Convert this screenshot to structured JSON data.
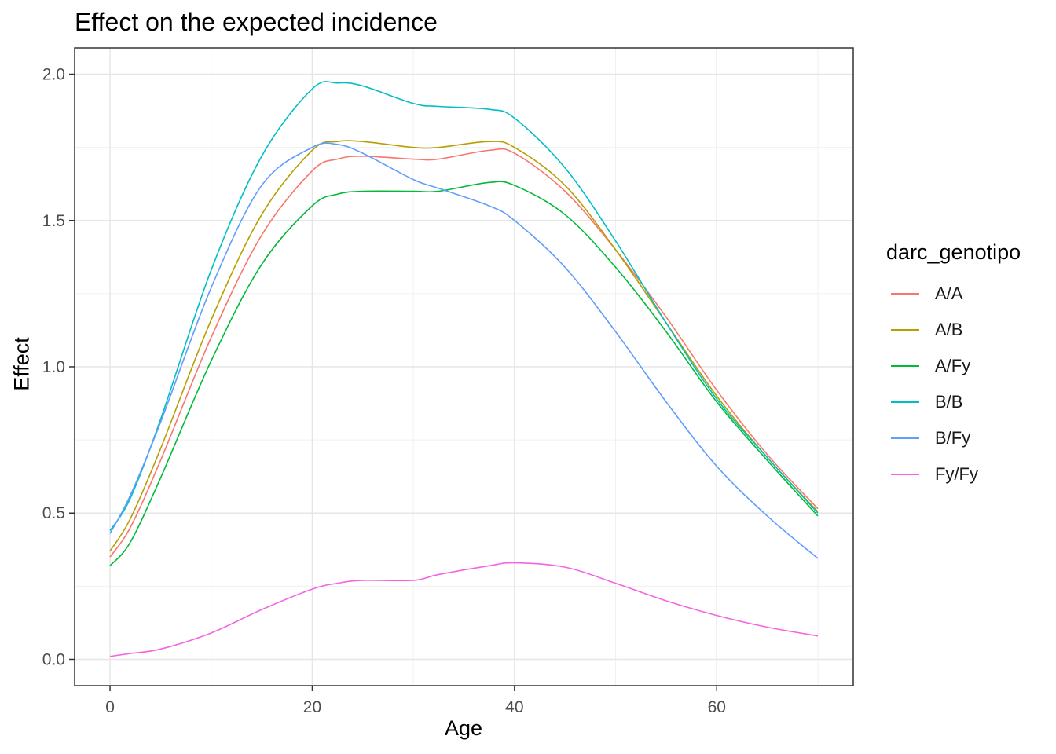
{
  "chart_data": {
    "type": "line",
    "title": "Effect on the expected incidence",
    "xlabel": "Age",
    "ylabel": "Effect",
    "xlim": [
      -3.5,
      73.5
    ],
    "ylim": [
      -0.09,
      2.09
    ],
    "xticks": [
      0,
      20,
      40,
      60
    ],
    "yticks": [
      0.0,
      0.5,
      1.0,
      1.5,
      2.0
    ],
    "ytick_labels": [
      "0.0",
      "0.5",
      "1.0",
      "1.5",
      "2.0"
    ],
    "grid": true,
    "legend": {
      "title": "darc_genotipo",
      "position": "right"
    },
    "x": [
      0,
      2,
      5,
      10,
      15,
      20,
      22.5,
      25,
      30,
      32.5,
      37.5,
      40,
      45,
      50,
      55,
      60,
      65,
      70
    ],
    "series": [
      {
        "name": "A/A",
        "color": "#F8766D",
        "values": [
          0.35,
          0.45,
          0.68,
          1.1,
          1.45,
          1.67,
          1.71,
          1.72,
          1.71,
          1.71,
          1.74,
          1.73,
          1.6,
          1.4,
          1.17,
          0.92,
          0.7,
          0.515
        ]
      },
      {
        "name": "A/B",
        "color": "#B79F00",
        "values": [
          0.37,
          0.48,
          0.72,
          1.16,
          1.52,
          1.74,
          1.77,
          1.77,
          1.75,
          1.75,
          1.77,
          1.75,
          1.62,
          1.4,
          1.15,
          0.9,
          0.69,
          0.505
        ]
      },
      {
        "name": "A/Fy",
        "color": "#00BA38",
        "values": [
          0.32,
          0.4,
          0.62,
          1.02,
          1.35,
          1.55,
          1.59,
          1.6,
          1.6,
          1.6,
          1.63,
          1.62,
          1.52,
          1.34,
          1.12,
          0.88,
          0.68,
          0.49
        ]
      },
      {
        "name": "B/B",
        "color": "#00BFC4",
        "values": [
          0.44,
          0.55,
          0.82,
          1.33,
          1.72,
          1.95,
          1.97,
          1.96,
          1.9,
          1.89,
          1.88,
          1.85,
          1.68,
          1.43,
          1.15,
          0.89,
          0.69,
          0.5
        ]
      },
      {
        "name": "B/Fy",
        "color": "#619CFF",
        "values": [
          0.43,
          0.56,
          0.81,
          1.27,
          1.62,
          1.75,
          1.76,
          1.73,
          1.64,
          1.61,
          1.55,
          1.5,
          1.34,
          1.12,
          0.88,
          0.66,
          0.49,
          0.345
        ]
      },
      {
        "name": "Fy/Fy",
        "color": "#F564E3",
        "values": [
          0.01,
          0.02,
          0.035,
          0.09,
          0.17,
          0.24,
          0.26,
          0.27,
          0.27,
          0.29,
          0.32,
          0.33,
          0.315,
          0.26,
          0.2,
          0.15,
          0.11,
          0.08
        ]
      }
    ]
  }
}
